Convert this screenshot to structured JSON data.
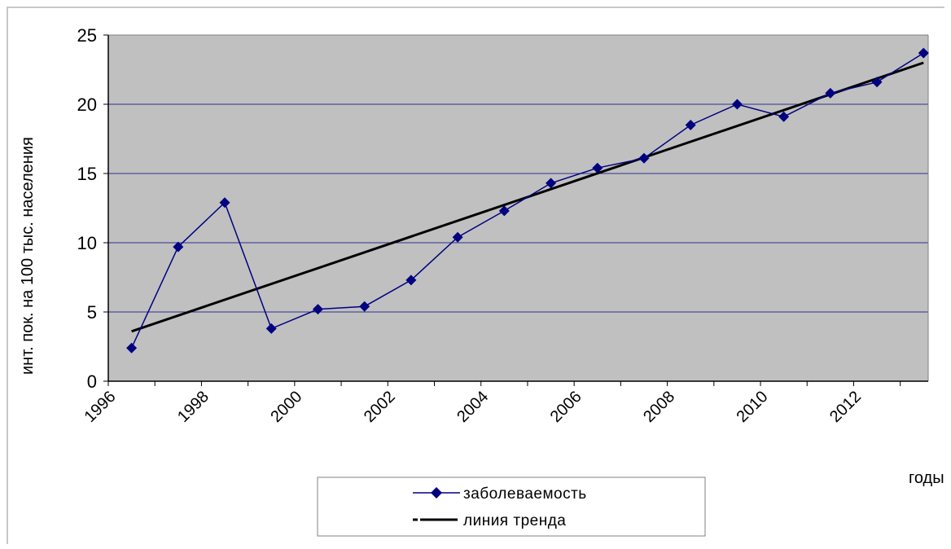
{
  "chart_data": {
    "type": "line",
    "xlabel": "годы",
    "ylabel": "инт. пок. на 100 тыс. населения",
    "ylim": [
      0,
      25
    ],
    "yticks": [
      0,
      5,
      10,
      15,
      20,
      25
    ],
    "xlim": [
      1996,
      2013.6
    ],
    "xticks": [
      "1996",
      "1998",
      "2000",
      "2002",
      "2004",
      "2006",
      "2008",
      "2010",
      "2012"
    ],
    "grid": true,
    "legend_position": "bottom",
    "colors": {
      "plot_bg": "#c0c0c0",
      "series": "#000080",
      "trend": "#000000",
      "grid": "#000080"
    },
    "series": [
      {
        "name": "заболеваемость",
        "marker": "diamond",
        "x": [
          1996.5,
          1997.5,
          1998.5,
          1999.5,
          2000.5,
          2001.5,
          2002.5,
          2003.5,
          2004.5,
          2005.5,
          2006.5,
          2007.5,
          2008.5,
          2009.5,
          2010.5,
          2011.5,
          2012.5,
          2013.5
        ],
        "values": [
          2.4,
          9.7,
          12.9,
          3.8,
          5.2,
          5.4,
          7.3,
          10.4,
          12.3,
          14.3,
          15.4,
          16.1,
          18.5,
          20.0,
          19.1,
          20.8,
          21.6,
          23.7
        ]
      },
      {
        "name": "линия тренда",
        "x": [
          1996.5,
          2013.5
        ],
        "values": [
          3.6,
          23.0
        ]
      }
    ]
  }
}
